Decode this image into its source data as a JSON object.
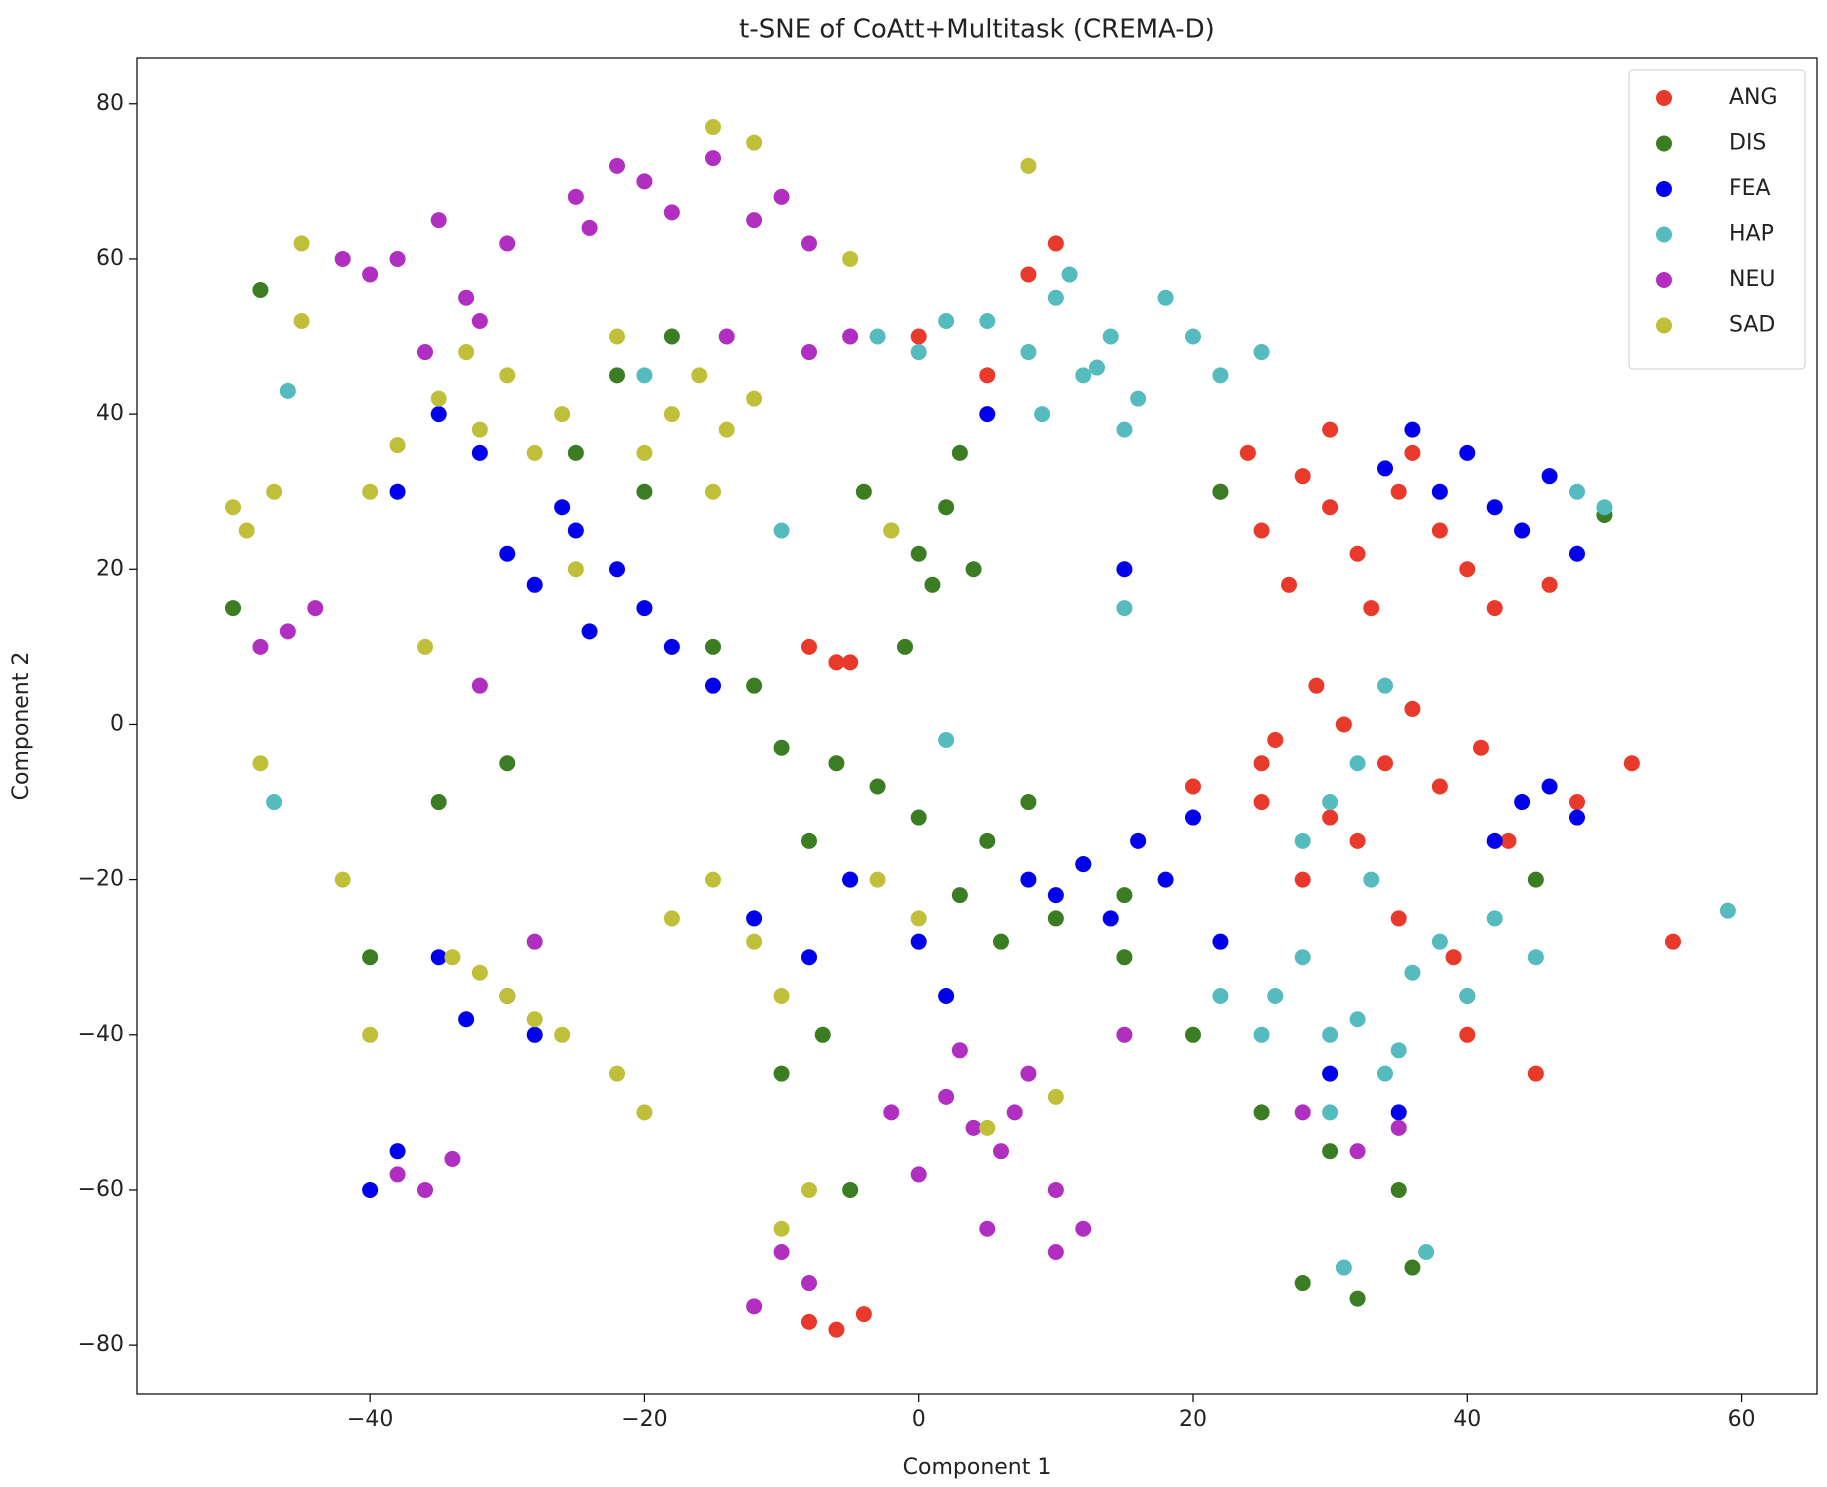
{
  "chart_data": {
    "type": "scatter",
    "title": "t-SNE of CoAtt+Multitask (CREMA-D)",
    "x_label": "Component 1",
    "y_label": "Component 2",
    "xlim": [
      -57,
      65.5
    ],
    "ylim": [
      -86.3,
      85.9
    ],
    "xticks": [
      {
        "value": -40,
        "label": "−40"
      },
      {
        "value": -20,
        "label": "−20"
      },
      0,
      20,
      40,
      60
    ],
    "yticks": [
      {
        "value": -80,
        "label": "−80"
      },
      {
        "value": -60,
        "label": "−60"
      },
      {
        "value": -40,
        "label": "−40"
      },
      {
        "value": -20,
        "label": "−20"
      },
      0,
      20,
      40,
      60,
      80
    ],
    "grid": false,
    "legend": "upper right",
    "series": [
      {
        "name": "ANG",
        "color": "#e8392a",
        "x": [
          22,
          25,
          28,
          30,
          32,
          35,
          38,
          40,
          42,
          27,
          33,
          36,
          24,
          30,
          44,
          46,
          26,
          31,
          34,
          38,
          29,
          36,
          41,
          25,
          32,
          28,
          35,
          39,
          43,
          30,
          -8,
          -6,
          -4,
          -5,
          0,
          10,
          5,
          8,
          -8,
          -6,
          48,
          52,
          55,
          20,
          25,
          40,
          45
        ],
        "values": [
          30,
          25,
          32,
          28,
          22,
          30,
          25,
          20,
          15,
          18,
          15,
          35,
          35,
          38,
          25,
          18,
          -2,
          0,
          -5,
          -8,
          5,
          2,
          -3,
          -10,
          -15,
          -20,
          -25,
          -30,
          -15,
          -12,
          -77,
          -78,
          -76,
          8,
          50,
          62,
          45,
          58,
          10,
          8,
          -10,
          -5,
          -28,
          -8,
          -5,
          -40,
          -45
        ]
      },
      {
        "name": "DIS",
        "color": "#3a7d22",
        "x": [
          -2,
          0,
          2,
          4,
          -4,
          1,
          3,
          -1,
          -6,
          -3,
          0,
          5,
          8,
          -8,
          -5,
          -10,
          -12,
          -15,
          -20,
          -25,
          -22,
          -18,
          10,
          15,
          20,
          25,
          30,
          35,
          40,
          45,
          50,
          -50,
          -48,
          -35,
          -30,
          -40,
          -5,
          3,
          6,
          -7,
          12,
          15,
          -10,
          28,
          32,
          36,
          22
        ],
        "values": [
          25,
          22,
          28,
          20,
          30,
          18,
          35,
          10,
          -5,
          -8,
          -12,
          -15,
          -10,
          -15,
          -20,
          -3,
          5,
          10,
          30,
          35,
          45,
          50,
          -25,
          -30,
          -40,
          -50,
          -55,
          -60,
          -35,
          -20,
          27,
          15,
          56,
          -10,
          -5,
          -30,
          -60,
          -22,
          -28,
          -40,
          -18,
          -22,
          -45,
          -72,
          -74,
          -70,
          30
        ]
      },
      {
        "name": "FEA",
        "color": "#0000ee",
        "x": [
          -30,
          -28,
          -25,
          -22,
          -20,
          -26,
          -24,
          -32,
          -35,
          -38,
          -18,
          -15,
          38,
          40,
          42,
          44,
          46,
          36,
          34,
          48,
          8,
          10,
          12,
          14,
          16,
          18,
          20,
          22,
          44,
          46,
          42,
          48,
          -30,
          -33,
          -35,
          -28,
          -12,
          -8,
          0,
          5,
          -40,
          -38,
          -5,
          2,
          15,
          30,
          35
        ],
        "values": [
          22,
          18,
          25,
          20,
          15,
          28,
          12,
          35,
          40,
          30,
          10,
          5,
          30,
          35,
          28,
          25,
          32,
          38,
          33,
          22,
          -20,
          -22,
          -18,
          -25,
          -15,
          -20,
          -12,
          -28,
          -10,
          -8,
          -15,
          -12,
          -35,
          -38,
          -30,
          -40,
          -25,
          -30,
          -28,
          40,
          -60,
          -55,
          -20,
          -35,
          20,
          -45,
          -50
        ]
      },
      {
        "name": "HAP",
        "color": "#55bbbf",
        "x": [
          5,
          8,
          10,
          12,
          14,
          16,
          18,
          9,
          11,
          13,
          15,
          20,
          22,
          25,
          2,
          0,
          -3,
          26,
          28,
          30,
          32,
          34,
          36,
          38,
          25,
          30,
          35,
          40,
          33,
          28,
          31,
          37,
          42,
          45,
          30,
          32,
          34,
          48,
          50,
          -20,
          -10,
          2,
          22,
          15,
          -46,
          59,
          -47
        ],
        "values": [
          52,
          48,
          55,
          45,
          50,
          42,
          55,
          40,
          58,
          46,
          38,
          50,
          45,
          48,
          52,
          48,
          50,
          -35,
          -30,
          -40,
          -38,
          -45,
          -32,
          -28,
          -40,
          -50,
          -42,
          -35,
          -20,
          -15,
          -70,
          -68,
          -25,
          -30,
          -10,
          -5,
          5,
          30,
          28,
          45,
          25,
          -2,
          -35,
          15,
          43,
          -24,
          -10
        ]
      },
      {
        "name": "NEU",
        "color": "#b02fc0",
        "x": [
          -40,
          -38,
          -35,
          -33,
          -30,
          -32,
          -36,
          -42,
          -25,
          -22,
          -20,
          -18,
          -24,
          -15,
          -12,
          -10,
          -8,
          -14,
          2,
          4,
          6,
          8,
          10,
          0,
          -2,
          5,
          7,
          3,
          -46,
          -44,
          -48,
          -38,
          -36,
          -34,
          -10,
          -8,
          -12,
          10,
          12,
          28,
          32,
          35,
          -28,
          -32,
          -5,
          -8,
          15
        ],
        "values": [
          58,
          60,
          65,
          55,
          62,
          52,
          48,
          60,
          68,
          72,
          70,
          66,
          64,
          73,
          65,
          68,
          62,
          50,
          -48,
          -52,
          -55,
          -45,
          -60,
          -58,
          -50,
          -65,
          -50,
          -42,
          12,
          15,
          10,
          -58,
          -60,
          -56,
          -68,
          -72,
          -75,
          -68,
          -65,
          -50,
          -55,
          -52,
          -28,
          5,
          50,
          48,
          -40
        ]
      },
      {
        "name": "SAD",
        "color": "#bfbf3a",
        "x": [
          -35,
          -32,
          -30,
          -28,
          -26,
          -33,
          -38,
          -40,
          -18,
          -16,
          -14,
          -20,
          -22,
          -12,
          -15,
          -30,
          -28,
          -32,
          -26,
          -34,
          -22,
          -18,
          -15,
          -12,
          -10,
          -20,
          -50,
          -49,
          -47,
          -45,
          -48,
          -15,
          -12,
          -5,
          5,
          10,
          0,
          -8,
          -25,
          -36,
          -10,
          -3,
          -42,
          -40,
          -2,
          8,
          -45
        ],
        "values": [
          42,
          38,
          45,
          35,
          40,
          48,
          36,
          30,
          40,
          45,
          38,
          35,
          50,
          42,
          30,
          -35,
          -38,
          -32,
          -40,
          -30,
          -45,
          -25,
          -20,
          -28,
          -35,
          -50,
          28,
          25,
          30,
          62,
          -5,
          77,
          75,
          60,
          -52,
          -48,
          -25,
          -60,
          20,
          10,
          -65,
          -20,
          -20,
          -40,
          25,
          72,
          52
        ]
      }
    ]
  }
}
